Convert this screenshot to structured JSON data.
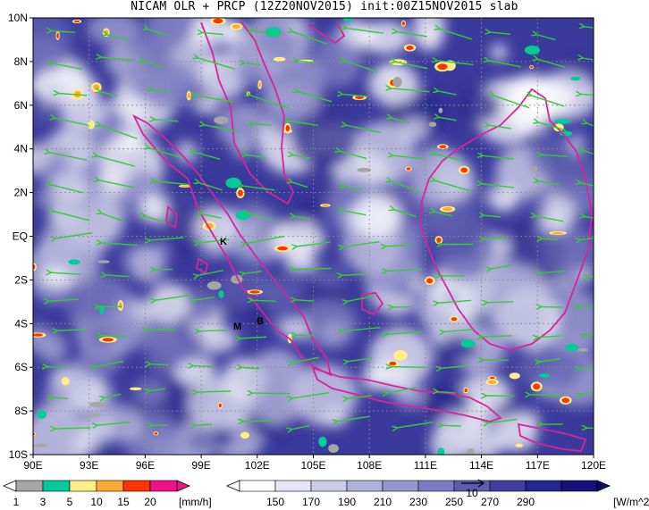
{
  "title": "NICAM OLR + PRCP (12Z20NOV2015) init:00Z15NOV2015 slab",
  "map": {
    "lon_range": [
      90,
      120
    ],
    "lat_range": [
      -10,
      10
    ],
    "x_ticks": [
      "90E",
      "93E",
      "96E",
      "99E",
      "102E",
      "105E",
      "108E",
      "111E",
      "114E",
      "117E",
      "120E"
    ],
    "y_ticks": [
      "10N",
      "8N",
      "6N",
      "4N",
      "2N",
      "EQ",
      "2S",
      "4S",
      "6S",
      "8S",
      "10S"
    ],
    "place_labels": [
      "K",
      "M",
      "B"
    ],
    "colors": {
      "olr_low": "#ffffff",
      "olr_high": "#1a1a7a",
      "coastline": "#d4259a",
      "wind_vectors": "#33cc33",
      "grid": "#888888"
    }
  },
  "precip_colorbar": {
    "labels": [
      "1",
      "3",
      "5",
      "10",
      "15",
      "20"
    ],
    "unit": "[mm/h]",
    "colors": [
      "#a6a6a6",
      "#00cc99",
      "#ffee88",
      "#ffaa33",
      "#ff3300",
      "#ee1188"
    ]
  },
  "olr_colorbar": {
    "labels": [
      "150",
      "170",
      "190",
      "210",
      "230",
      "250",
      "270",
      "290"
    ],
    "unit": "[W/m^2]",
    "colors": [
      "#ffffff",
      "#e6e6f5",
      "#ccccea",
      "#b0b0dd",
      "#9696d0",
      "#7a7ac2",
      "#5c5cb3",
      "#3e3ea3",
      "#25258f",
      "#121278"
    ]
  },
  "legend_vector_label": "10"
}
